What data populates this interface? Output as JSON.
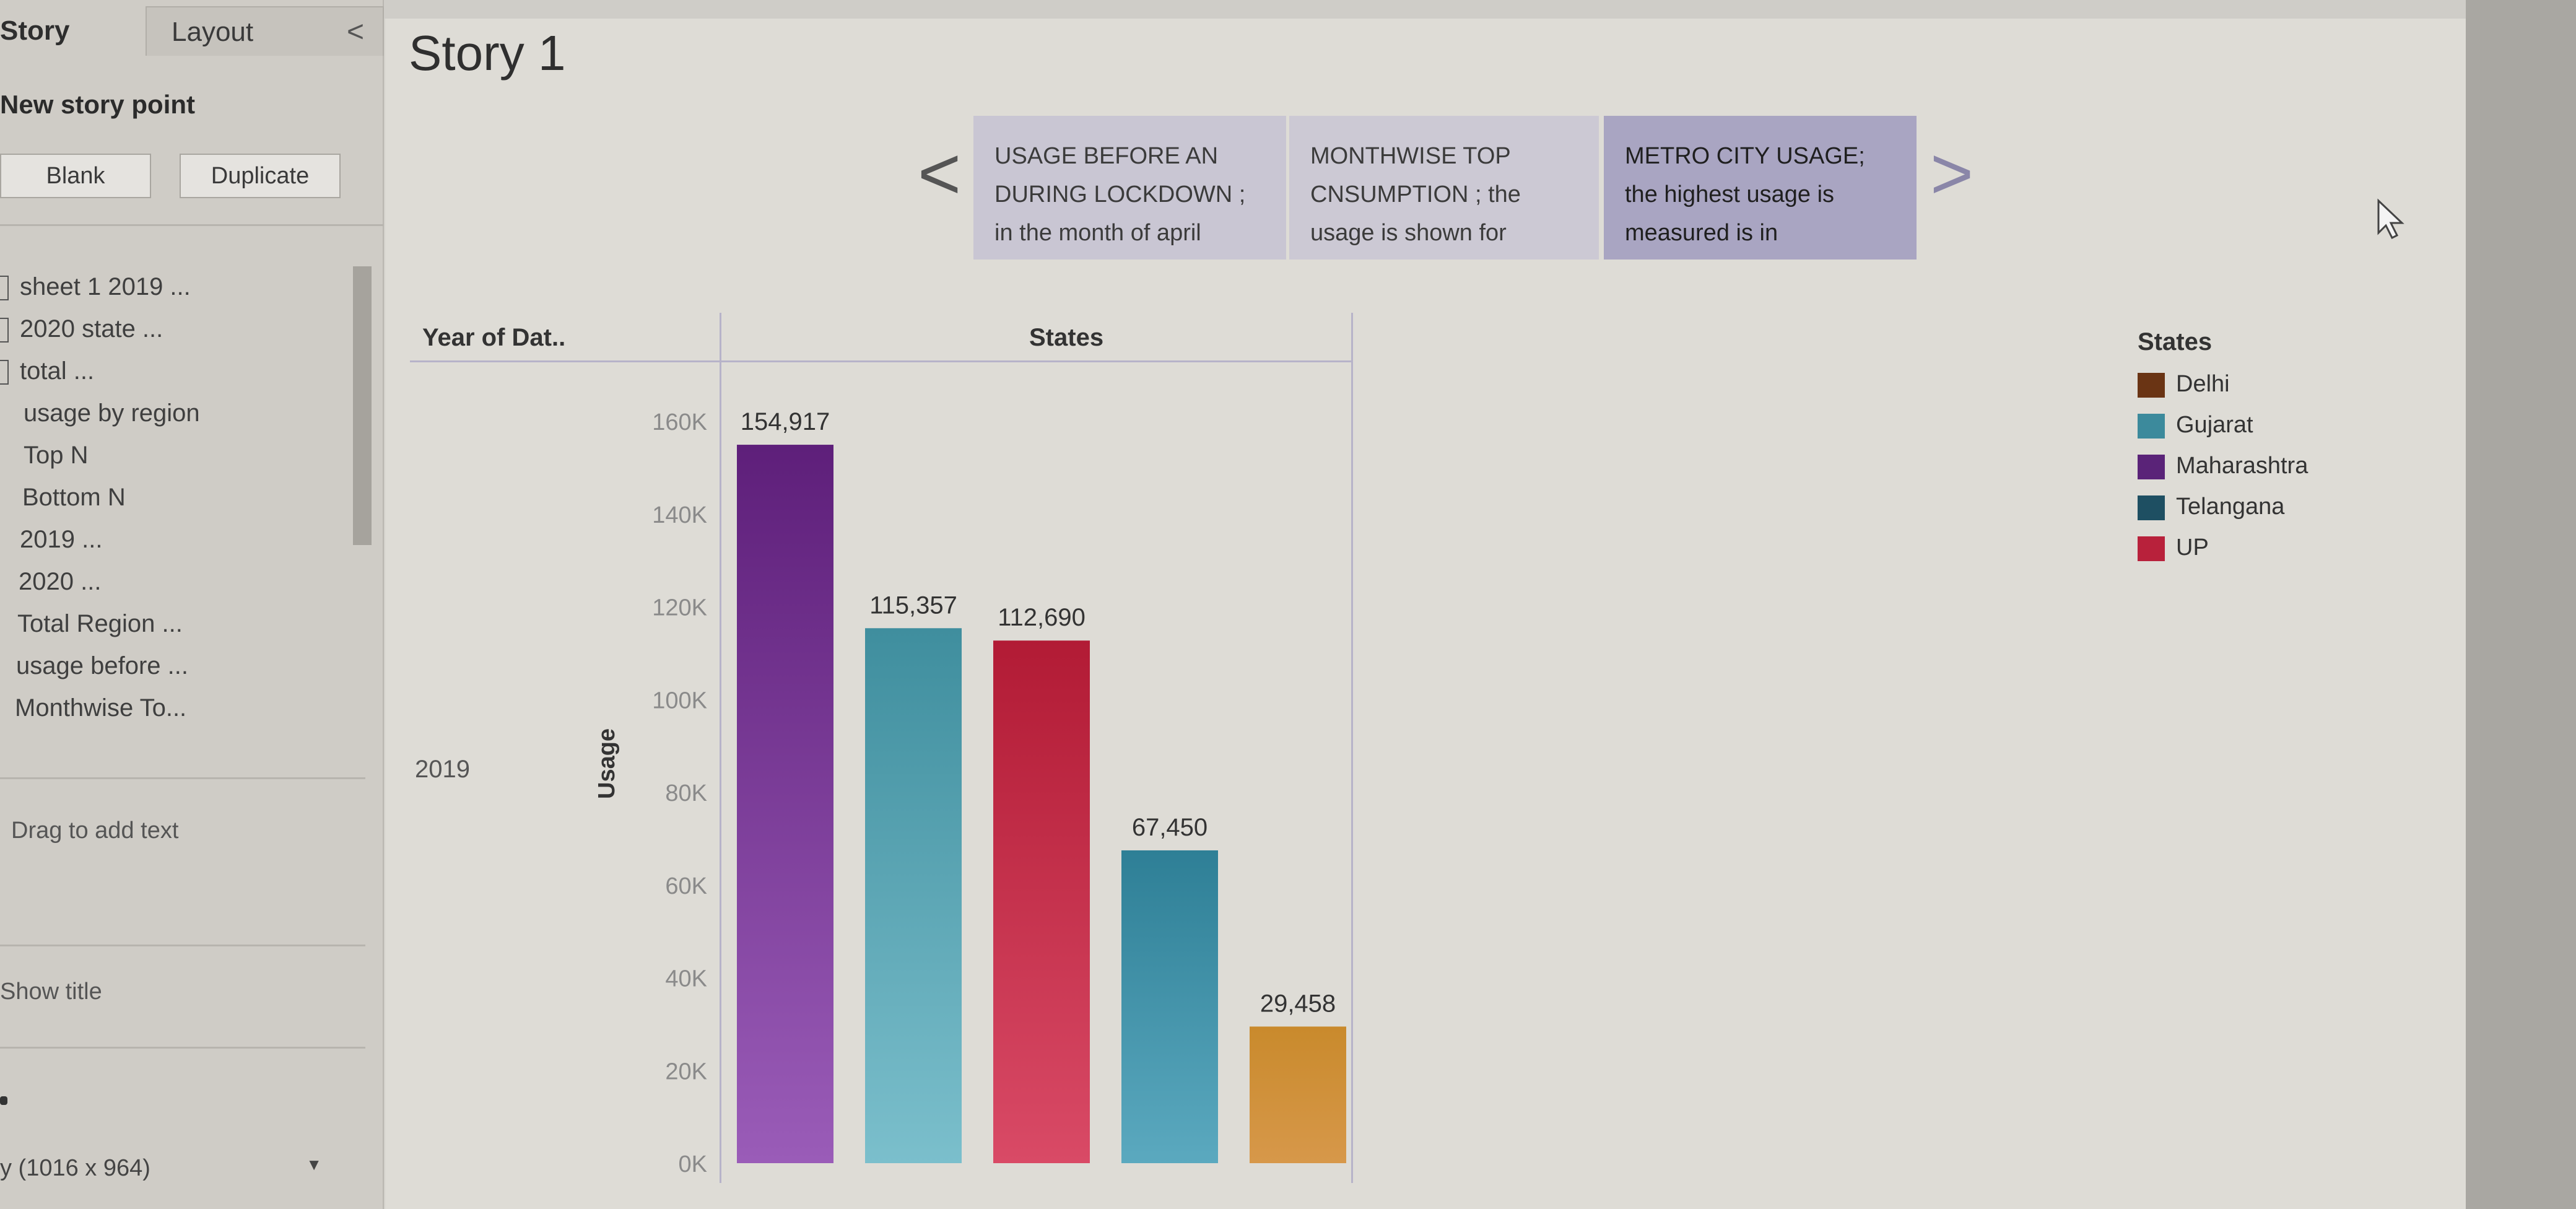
{
  "left_pane": {
    "tabs": {
      "story": "Story",
      "layout": "Layout",
      "collapse_glyph": "<"
    },
    "new_story_point_label": "New story point",
    "buttons": {
      "blank": "Blank",
      "duplicate": "Duplicate"
    },
    "sheets": [
      "sheet 1 2019 ...",
      "2020 state ...",
      "total ...",
      "usage by region",
      "Top N",
      "Bottom N",
      "2019 ...",
      "2020 ...",
      "Total Region ...",
      "usage before ...",
      "Monthwise To..."
    ],
    "drag_text": "Drag to add text",
    "show_title": "Show title",
    "size_select": "y (1016 x 964)"
  },
  "story": {
    "title": "Story 1",
    "story_points": [
      {
        "line1": "USAGE BEFORE AN",
        "line2": "DURING LOCKDOWN ;",
        "line3": "in the month of april"
      },
      {
        "line1": "MONTHWISE TOP",
        "line2": "CNSUMPTION ; the",
        "line3": "usage is shown for"
      },
      {
        "line1": "METRO CITY USAGE;",
        "line2": "the highest usage is",
        "line3": "measured is in"
      }
    ],
    "nav_prev": "<",
    "nav_next": ">"
  },
  "table": {
    "col_year": "Year of Dat..",
    "col_states": "States",
    "row_year": "2019"
  },
  "legend": {
    "title": "States",
    "items": [
      {
        "name": "Delhi",
        "color": "#6a3414"
      },
      {
        "name": "Gujarat",
        "color": "#3c8a9c"
      },
      {
        "name": "Maharashtra",
        "color": "#5a2378"
      },
      {
        "name": "Telangana",
        "color": "#1e4f62"
      },
      {
        "name": "UP",
        "color": "#b8213b"
      }
    ]
  },
  "chart_data": {
    "type": "bar",
    "title": "",
    "xlabel": "States",
    "ylabel": "Usage",
    "ylim": [
      0,
      160000
    ],
    "yticks": [
      "0K",
      "20K",
      "40K",
      "60K",
      "80K",
      "100K",
      "120K",
      "140K",
      "160K"
    ],
    "grid": false,
    "legend_position": "right",
    "bars": [
      {
        "value": 154917,
        "label": "154,917",
        "color_top": "#5e1f7a",
        "color_bottom": "#9a5cb8"
      },
      {
        "value": 115357,
        "label": "115,357",
        "color_top": "#3f8e9e",
        "color_bottom": "#7bbfcc"
      },
      {
        "value": 112690,
        "label": "112,690",
        "color_top": "#b21b35",
        "color_bottom": "#d94a66"
      },
      {
        "value": 67450,
        "label": "67,450",
        "color_top": "#2e7f96",
        "color_bottom": "#5ba9bf"
      },
      {
        "value": 29458,
        "label": "29,458",
        "color_top": "#c98a2c",
        "color_bottom": "#d7984a"
      }
    ]
  }
}
